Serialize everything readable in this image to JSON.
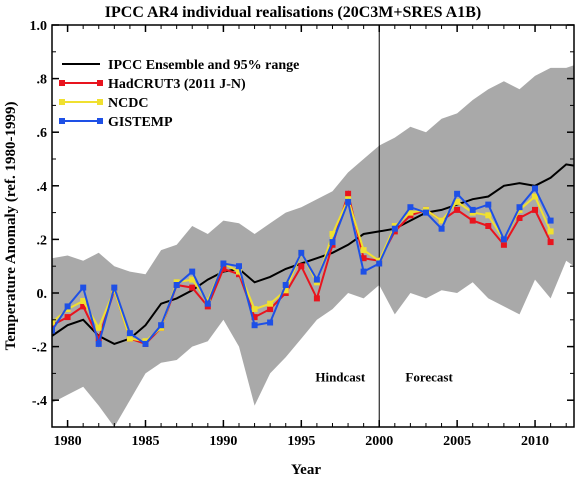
{
  "chart_data": {
    "type": "line",
    "title": "IPCC AR4 individual realisations (20C3M+SRES A1B)",
    "xlabel": "Year",
    "ylabel": "Temperature Anomaly (ref. 1980-1999)",
    "xlim": [
      1979,
      2012.5
    ],
    "ylim": [
      -0.5,
      1.0
    ],
    "x_ticks": [
      1980,
      1985,
      1990,
      1995,
      2000,
      2005,
      2010
    ],
    "y_ticks": [
      -0.4,
      -0.2,
      0.0,
      0.2,
      0.4,
      0.6,
      0.8,
      1.0
    ],
    "y_tick_labels": [
      "-.4",
      "-.2",
      "0.",
      ".2",
      ".4",
      ".6",
      ".8",
      "1.0"
    ],
    "x_tick_labels": [
      "1980",
      "1985",
      "1990",
      "1995",
      "2000",
      "2005",
      "2010"
    ],
    "divider_x": 2000,
    "annotations": [
      {
        "text": "Hindcast",
        "x": 1997.5,
        "y": -0.33
      },
      {
        "text": "Forecast",
        "x": 2003.2,
        "y": -0.33
      }
    ],
    "legend_position": "top-left",
    "range_band": {
      "color": "#a9a9a9",
      "x": [
        1979,
        1980,
        1981,
        1982,
        1983,
        1984,
        1985,
        1986,
        1987,
        1988,
        1989,
        1990,
        1991,
        1992,
        1993,
        1994,
        1995,
        1996,
        1997,
        1998,
        1999,
        2000,
        2001,
        2002,
        2003,
        2004,
        2005,
        2006,
        2007,
        2008,
        2009,
        2010,
        2011,
        2012,
        2012.5
      ],
      "upper": [
        0.13,
        0.14,
        0.12,
        0.15,
        0.1,
        0.08,
        0.07,
        0.16,
        0.18,
        0.25,
        0.22,
        0.27,
        0.26,
        0.22,
        0.26,
        0.3,
        0.32,
        0.35,
        0.38,
        0.45,
        0.5,
        0.55,
        0.58,
        0.62,
        0.6,
        0.65,
        0.67,
        0.72,
        0.76,
        0.79,
        0.76,
        0.81,
        0.84,
        0.84,
        0.85
      ],
      "lower": [
        -0.41,
        -0.38,
        -0.35,
        -0.42,
        -0.5,
        -0.4,
        -0.3,
        -0.26,
        -0.25,
        -0.2,
        -0.18,
        -0.1,
        -0.2,
        -0.42,
        -0.3,
        -0.24,
        -0.17,
        -0.1,
        -0.06,
        0.0,
        -0.02,
        0.03,
        -0.08,
        0.0,
        -0.02,
        0.01,
        0.0,
        0.04,
        -0.02,
        -0.05,
        -0.08,
        0.05,
        -0.02,
        0.12,
        0.1
      ]
    },
    "series": [
      {
        "name": "IPCC Ensemble and 95% range",
        "color": "#000000",
        "marker": "none",
        "x": [
          1979,
          1980,
          1981,
          1982,
          1983,
          1984,
          1985,
          1986,
          1987,
          1988,
          1989,
          1990,
          1991,
          1992,
          1993,
          1994,
          1995,
          1996,
          1997,
          1998,
          1999,
          2000,
          2001,
          2002,
          2003,
          2004,
          2005,
          2006,
          2007,
          2008,
          2009,
          2010,
          2011,
          2012,
          2012.5
        ],
        "values": [
          -0.16,
          -0.12,
          -0.1,
          -0.16,
          -0.19,
          -0.17,
          -0.12,
          -0.04,
          -0.02,
          0.01,
          0.05,
          0.08,
          0.09,
          0.04,
          0.06,
          0.09,
          0.11,
          0.13,
          0.15,
          0.18,
          0.22,
          0.23,
          0.24,
          0.27,
          0.3,
          0.31,
          0.33,
          0.35,
          0.36,
          0.4,
          0.41,
          0.4,
          0.43,
          0.48,
          0.475
        ]
      },
      {
        "name": "HadCRUT3 (2011 J-N)",
        "color": "#e8141e",
        "marker": "square",
        "x": [
          1979,
          1980,
          1981,
          1982,
          1983,
          1984,
          1985,
          1986,
          1987,
          1988,
          1989,
          1990,
          1991,
          1992,
          1993,
          1994,
          1995,
          1996,
          1997,
          1998,
          1999,
          2000,
          2001,
          2002,
          2003,
          2004,
          2005,
          2006,
          2007,
          2008,
          2009,
          2010,
          2011
        ],
        "values": [
          -0.12,
          -0.09,
          -0.05,
          -0.17,
          0.01,
          -0.17,
          -0.19,
          -0.13,
          0.03,
          0.02,
          -0.05,
          0.09,
          0.07,
          -0.09,
          -0.06,
          0.0,
          0.1,
          -0.02,
          0.18,
          0.37,
          0.13,
          0.12,
          0.23,
          0.29,
          0.31,
          0.27,
          0.31,
          0.27,
          0.25,
          0.18,
          0.28,
          0.31,
          0.19
        ]
      },
      {
        "name": "NCDC",
        "color": "#f0e030",
        "marker": "square",
        "x": [
          1979,
          1980,
          1981,
          1982,
          1983,
          1984,
          1985,
          1986,
          1987,
          1988,
          1989,
          1990,
          1991,
          1992,
          1993,
          1994,
          1995,
          1996,
          1997,
          1998,
          1999,
          2000,
          2001,
          2002,
          2003,
          2004,
          2005,
          2006,
          2007,
          2008,
          2009,
          2010,
          2011
        ],
        "values": [
          -0.11,
          -0.06,
          -0.03,
          -0.13,
          0.01,
          -0.17,
          -0.18,
          -0.13,
          0.04,
          0.05,
          -0.03,
          0.11,
          0.08,
          -0.06,
          -0.04,
          0.01,
          0.15,
          0.04,
          0.22,
          0.35,
          0.16,
          0.12,
          0.25,
          0.3,
          0.31,
          0.27,
          0.34,
          0.3,
          0.29,
          0.2,
          0.31,
          0.36,
          0.23
        ]
      },
      {
        "name": "GISTEMP",
        "color": "#1e50e6",
        "marker": "square",
        "x": [
          1979,
          1980,
          1981,
          1982,
          1983,
          1984,
          1985,
          1986,
          1987,
          1988,
          1989,
          1990,
          1991,
          1992,
          1993,
          1994,
          1995,
          1996,
          1997,
          1998,
          1999,
          2000,
          2001,
          2002,
          2003,
          2004,
          2005,
          2006,
          2007,
          2008,
          2009,
          2010,
          2011
        ],
        "values": [
          -0.14,
          -0.05,
          0.02,
          -0.19,
          0.02,
          -0.15,
          -0.19,
          -0.12,
          0.03,
          0.08,
          -0.04,
          0.11,
          0.1,
          -0.12,
          -0.11,
          0.03,
          0.15,
          0.05,
          0.19,
          0.34,
          0.08,
          0.11,
          0.24,
          0.32,
          0.3,
          0.24,
          0.37,
          0.31,
          0.33,
          0.2,
          0.32,
          0.39,
          0.27
        ]
      }
    ]
  }
}
